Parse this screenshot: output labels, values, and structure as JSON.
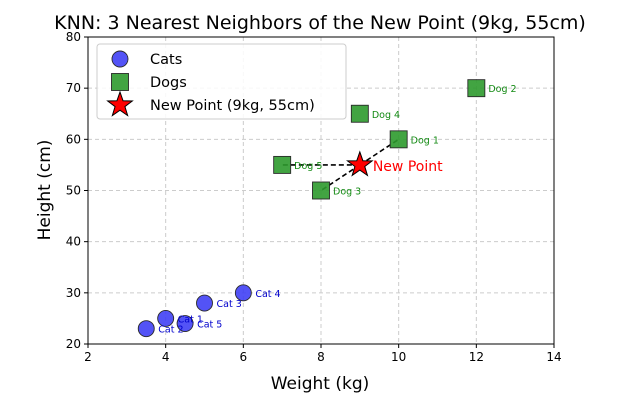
{
  "chart_data": {
    "type": "scatter",
    "title": "KNN: 3 Nearest Neighbors of the New Point (9kg, 55cm)",
    "xlabel": "Weight (kg)",
    "ylabel": "Height (cm)",
    "xlim": [
      2,
      14
    ],
    "ylim": [
      20,
      80
    ],
    "xticks": [
      2,
      4,
      6,
      8,
      10,
      12,
      14
    ],
    "yticks": [
      20,
      30,
      40,
      50,
      60,
      70,
      80
    ],
    "grid": true,
    "legend_position": "top-left",
    "series": [
      {
        "name": "Cats",
        "marker": "circle",
        "color": "#3b3bf5",
        "label_color": "#0000cc",
        "points": [
          {
            "x": 4,
            "y": 25,
            "label": "Cat 1"
          },
          {
            "x": 3.5,
            "y": 23,
            "label": "Cat 2"
          },
          {
            "x": 5,
            "y": 28,
            "label": "Cat 3"
          },
          {
            "x": 6,
            "y": 30,
            "label": "Cat 4"
          },
          {
            "x": 4.5,
            "y": 24,
            "label": "Cat 5"
          }
        ]
      },
      {
        "name": "Dogs",
        "marker": "square",
        "color": "#2e9a2e",
        "label_color": "#138a13",
        "points": [
          {
            "x": 10,
            "y": 60,
            "label": "Dog 1"
          },
          {
            "x": 12,
            "y": 70,
            "label": "Dog 2"
          },
          {
            "x": 8,
            "y": 50,
            "label": "Dog 3"
          },
          {
            "x": 9,
            "y": 65,
            "label": "Dog 4"
          },
          {
            "x": 7,
            "y": 55,
            "label": "Dog 5"
          }
        ]
      },
      {
        "name": "New Point (9kg, 55cm)",
        "marker": "star",
        "color": "#ff0000",
        "label_color": "#ff0000",
        "points": [
          {
            "x": 9,
            "y": 55,
            "label": "New Point"
          }
        ]
      }
    ],
    "neighbor_lines": {
      "from": {
        "x": 9,
        "y": 55
      },
      "to": [
        {
          "x": 10,
          "y": 60
        },
        {
          "x": 8,
          "y": 50
        },
        {
          "x": 7,
          "y": 55
        }
      ],
      "style": "dashed",
      "color": "#000000"
    }
  }
}
